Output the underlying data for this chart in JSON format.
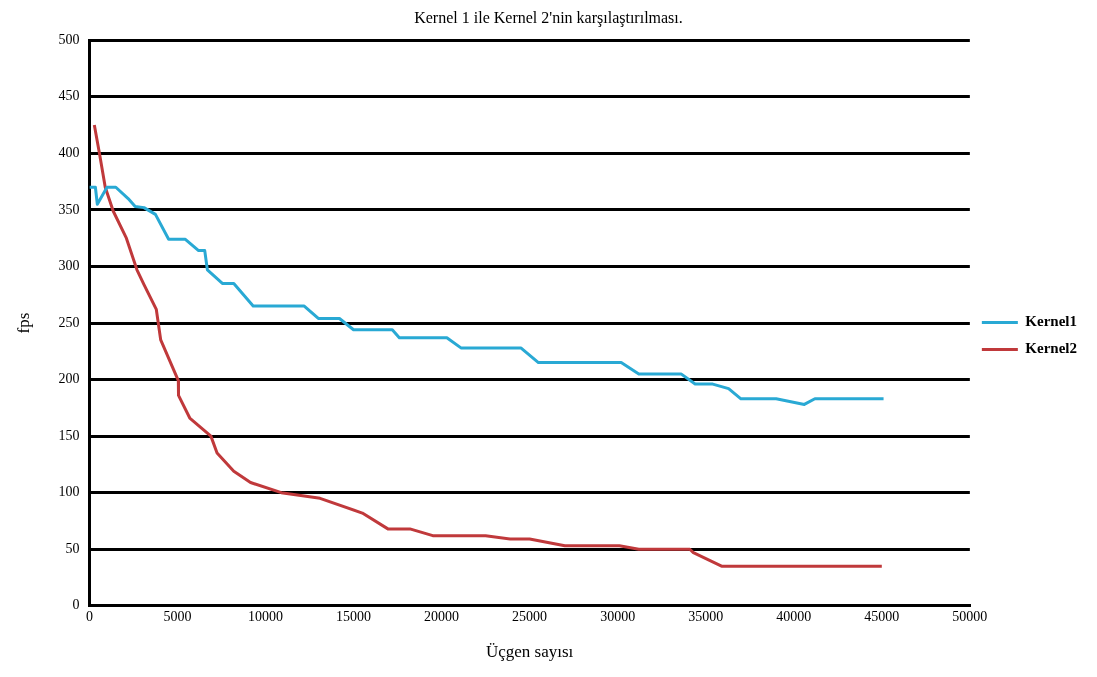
{
  "chart_data": {
    "type": "line",
    "title": "Kernel 1 ile Kernel 2'nin karşılaştırılması.",
    "xlabel": "Üçgen sayısı",
    "ylabel": "fps",
    "xlim": [
      0,
      50000
    ],
    "xticks": [
      0,
      5000,
      10000,
      15000,
      20000,
      25000,
      30000,
      35000,
      40000,
      45000,
      50000
    ],
    "ylim": [
      0,
      500
    ],
    "yticks": [
      0,
      50,
      100,
      150,
      200,
      250,
      300,
      350,
      400,
      450,
      500
    ],
    "grid": "y",
    "legend": "right",
    "marker": "none",
    "line_style": "solid",
    "series": [
      {
        "name": "Kernel1",
        "color": "#29a9d4",
        "x": [
          0,
          340,
          450,
          1000,
          1500,
          2200,
          2600,
          3100,
          3750,
          4500,
          5450,
          6200,
          6550,
          6700,
          7550,
          8200,
          9300,
          12200,
          13000,
          14200,
          15000,
          17200,
          17600,
          20300,
          21100,
          24500,
          25500,
          30200,
          31200,
          33600,
          34400,
          35400,
          36300,
          37000,
          39000,
          40600,
          41200,
          45100
        ],
        "values": [
          370,
          370,
          355,
          370,
          370,
          360,
          353,
          352,
          346,
          324,
          324,
          314,
          314,
          297,
          285,
          285,
          265,
          265,
          254,
          254,
          244,
          244,
          237,
          237,
          228,
          228,
          215,
          215,
          205,
          205,
          196,
          196,
          192,
          183,
          183,
          178,
          183,
          183
        ]
      },
      {
        "name": "Kernel2",
        "color": "#c0393b",
        "x": [
          280,
          570,
          900,
          1350,
          2100,
          2700,
          3100,
          3800,
          4050,
          5050,
          5060,
          5700,
          6900,
          7250,
          8200,
          9150,
          10900,
          13100,
          15500,
          16950,
          18200,
          19500,
          22500,
          23900,
          25000,
          27000,
          30100,
          31200,
          34100,
          34300,
          35900,
          45000
        ],
        "values": [
          425,
          400,
          370,
          349,
          325,
          297,
          284,
          262,
          235,
          199,
          186,
          166,
          150,
          135,
          119,
          109,
          100,
          95,
          82,
          68,
          68,
          62,
          62,
          59,
          59,
          53,
          53,
          50,
          50,
          47,
          35,
          35
        ]
      }
    ]
  }
}
